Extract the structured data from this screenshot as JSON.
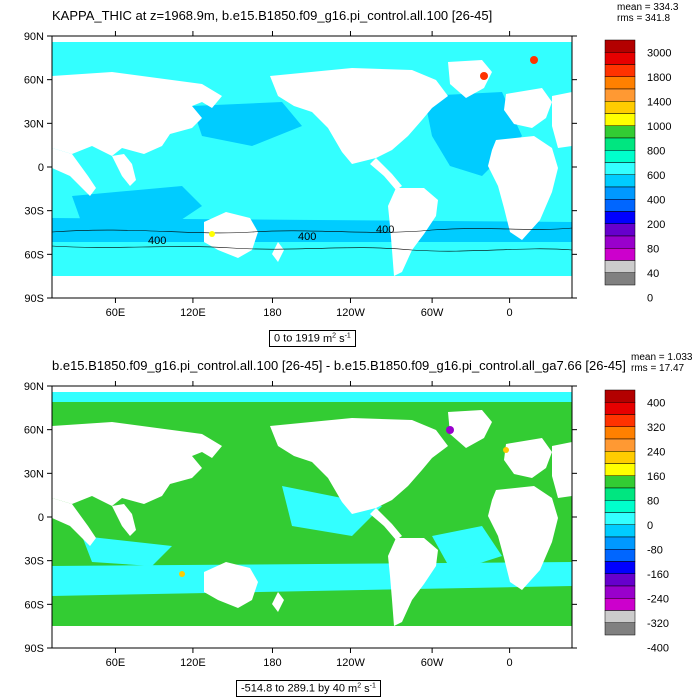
{
  "panels": [
    {
      "title": "KAPPA_THIC at z=1968.9m, b.e15.B1850.f09_g16.pi_control.all.100 [26-45]",
      "mean_text": "mean = 334.3",
      "rms_text": "rms = 341.8",
      "range_text": "0 to 1919",
      "units_base": "m",
      "units_exp1": "2",
      "units_mid": " s",
      "units_exp2": "-1",
      "contour_labels": [
        "400",
        "400",
        "400"
      ],
      "colorbar_labels": [
        "3000",
        "1800",
        "1400",
        "1000",
        "800",
        "600",
        "400",
        "200",
        "80",
        "40",
        "0"
      ],
      "colorbar_colors": [
        "#b30000",
        "#e60000",
        "#ff3300",
        "#ff8000",
        "#ff9933",
        "#ffcc00",
        "#ffff00",
        "#33cc33",
        "#00e680",
        "#00ffcc",
        "#33ffff",
        "#00ccff",
        "#0099ff",
        "#0066ff",
        "#0000ff",
        "#6600cc",
        "#9900cc",
        "#cc00cc",
        "#cccccc",
        "#808080"
      ]
    },
    {
      "title": "b.e15.B1850.f09_g16.pi_control.all.100 [26-45] - b.e15.B1850.f09_g16.pi_control.all_ga7.66 [26-45]",
      "mean_text": "mean = 1.033",
      "rms_text": "rms = 17.47",
      "range_text": "-514.8 to 289.1 by 40",
      "units_base": "m",
      "units_exp1": "2",
      "units_mid": " s",
      "units_exp2": "-1",
      "colorbar_labels": [
        "400",
        "320",
        "240",
        "160",
        "80",
        "0",
        "-80",
        "-160",
        "-240",
        "-320",
        "-400"
      ],
      "colorbar_colors": [
        "#b30000",
        "#e60000",
        "#ff3300",
        "#ff8000",
        "#ff9933",
        "#ffcc00",
        "#ffff00",
        "#33cc33",
        "#00e680",
        "#00ffcc",
        "#33ffff",
        "#00ccff",
        "#0099ff",
        "#0066ff",
        "#0000ff",
        "#6600cc",
        "#9900cc",
        "#cc00cc",
        "#cccccc",
        "#808080"
      ]
    }
  ],
  "axes": {
    "lat_labels": [
      "90N",
      "60N",
      "30N",
      "0",
      "30S",
      "60S",
      "90S"
    ],
    "lon_labels": [
      "60E",
      "120E",
      "180",
      "120W",
      "60W",
      "0"
    ]
  },
  "colors": {
    "ocean_top": "#33ffff",
    "ocean_top_dark": "#00ccff",
    "ocean_bottom": "#33cc33",
    "ocean_bottom_alt": "#33ffff",
    "land": "#ffffff"
  }
}
